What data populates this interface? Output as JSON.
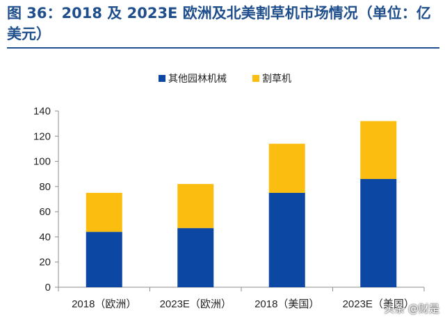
{
  "figure_title": "图 36：2018 及 2023E 欧洲及北美割草机市场情况（单位：亿美元）",
  "watermark": "头条 @财是",
  "colors": {
    "title": "#1f4e8c",
    "series_blue": "#0b47a3",
    "series_yellow": "#fbbd0f"
  },
  "chart_data": {
    "type": "bar",
    "stacked": true,
    "categories": [
      "2018（欧洲）",
      "2023E（欧洲）",
      "2018（美国）",
      "2023E（美国）"
    ],
    "series": [
      {
        "name": "其他园林机械",
        "values": [
          44,
          47,
          75,
          86
        ],
        "color": "#0b47a3"
      },
      {
        "name": "割草机",
        "values": [
          31,
          35,
          39,
          46
        ],
        "color": "#fbbd0f"
      }
    ],
    "ylim": [
      0,
      140
    ],
    "yticks": [
      "0",
      "20",
      "40",
      "60",
      "80",
      "100",
      "120",
      "140"
    ],
    "legend_position": "top-center",
    "grid": false
  }
}
